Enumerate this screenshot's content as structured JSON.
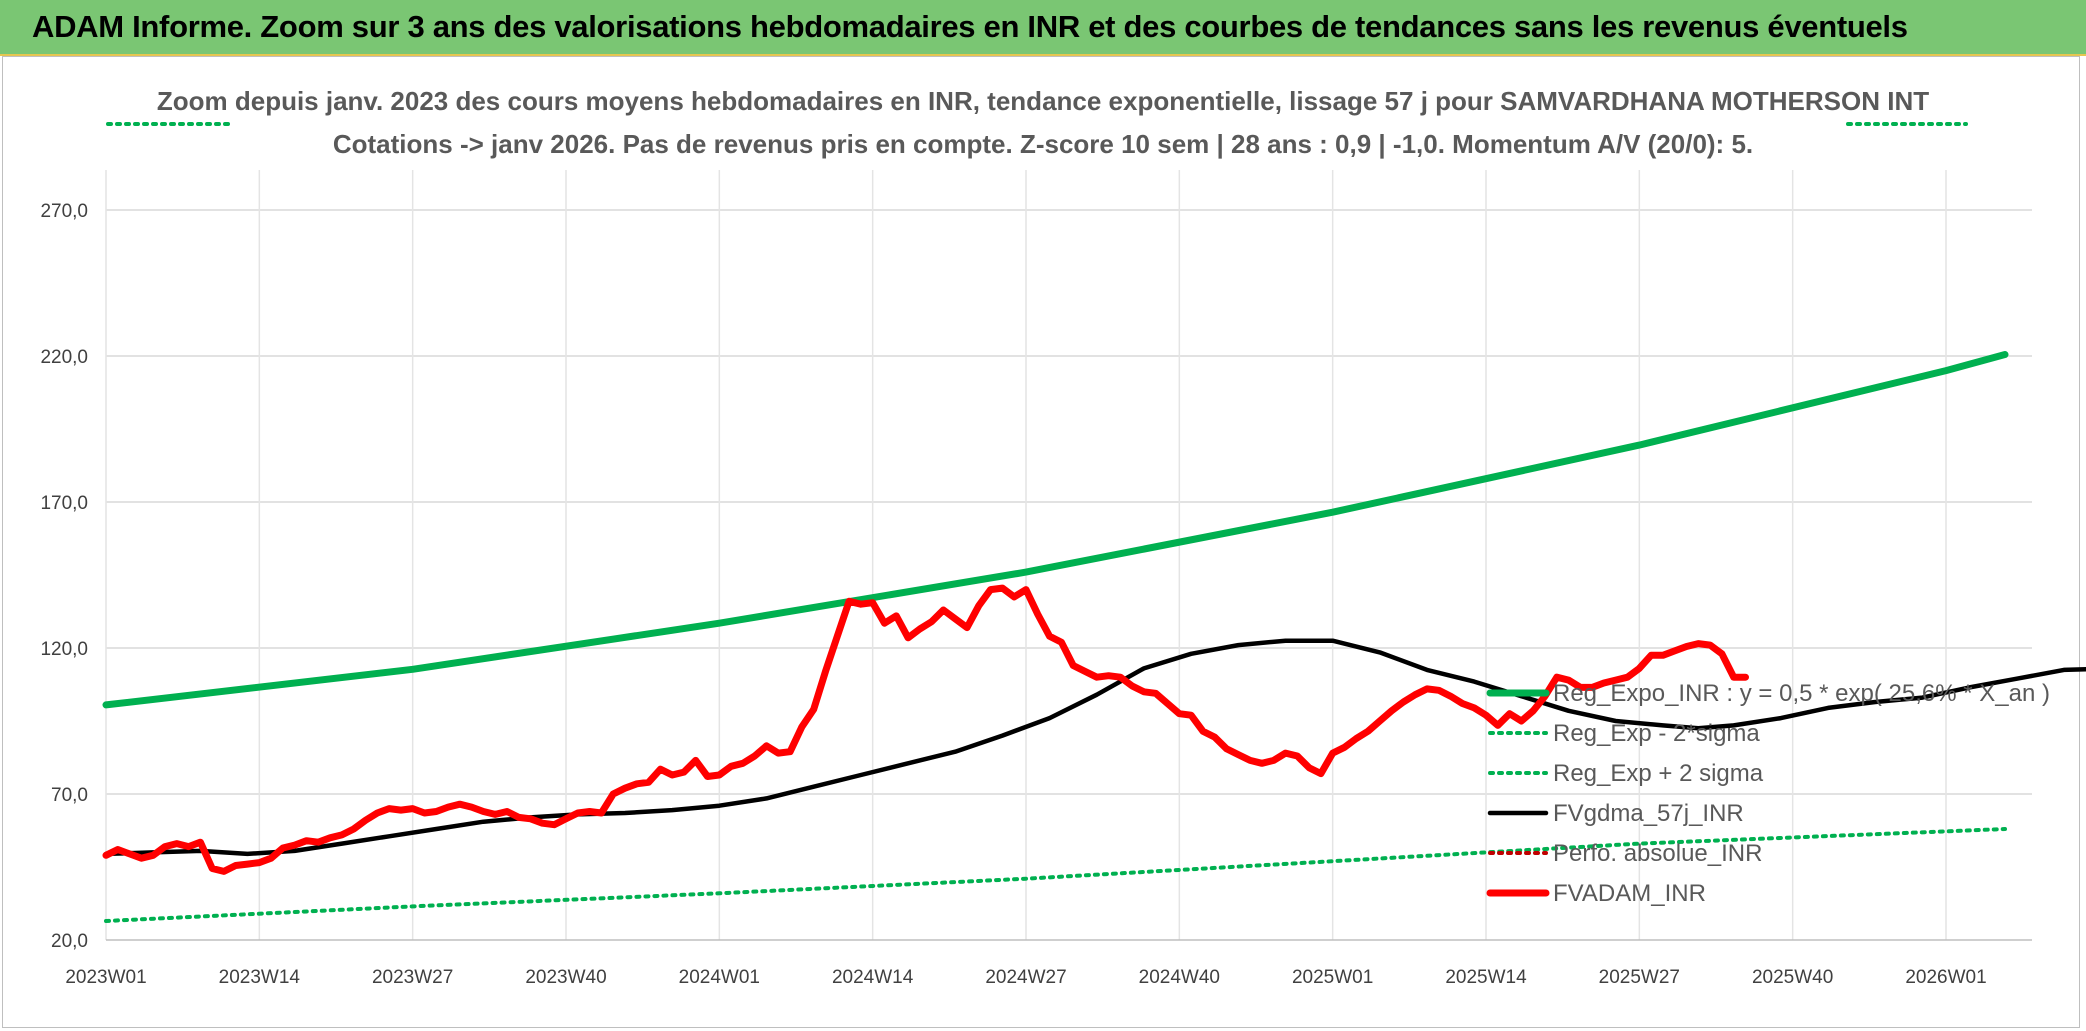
{
  "banner": {
    "title": "ADAM Informe. Zoom sur 3 ans des valorisations hebdomadaires en INR et des courbes de tendances sans les revenus éventuels"
  },
  "colors": {
    "banner_bg": "#7ac673",
    "reg_expo": "#00b050",
    "fvgdma": "#000000",
    "fvadam": "#ff0000",
    "perfo": "#c00000",
    "grid": "#d9d9d9"
  },
  "chart_data": {
    "type": "line",
    "title_line1": "Zoom depuis janv. 2023 des cours moyens hebdomadaires en INR, tendance exponentielle, lissage 57 j pour SAMVARDHANA MOTHERSON INT",
    "title_line2": "Cotations -> janv 2026. Pas de revenus pris en compte. Z-score 10 sem | 28 ans : 0,9 | -1,0. Momentum A/V (20/0): 5.",
    "ylim": [
      20,
      270
    ],
    "yticks": [
      "20,0",
      "70,0",
      "120,0",
      "170,0",
      "220,0",
      "270,0"
    ],
    "xticks": [
      "2023W01",
      "2023W14",
      "2023W27",
      "2023W40",
      "2024W01",
      "2024W14",
      "2024W27",
      "2024W40",
      "2025W01",
      "2025W14",
      "2025W27",
      "2025W40",
      "2026W01"
    ],
    "grid": true,
    "legend_position": "right",
    "series": [
      {
        "name": "Reg_Expo_INR : y = 0,5 * exp( 25,6% *  X_an )",
        "style": "solid-thick",
        "color": "#00b050",
        "points": [
          [
            0,
            100.5
          ],
          [
            26,
            112.7
          ],
          [
            52,
            128.5
          ],
          [
            78,
            146.0
          ],
          [
            104,
            166.5
          ],
          [
            130,
            189.5
          ],
          [
            156,
            215.0
          ],
          [
            161,
            220.5
          ]
        ]
      },
      {
        "name": "Reg_Exp - 2*sigma",
        "style": "dotted",
        "color": "#00b050",
        "points": [
          [
            0,
            26.5
          ],
          [
            26,
            31.5
          ],
          [
            52,
            36.0
          ],
          [
            78,
            41.0
          ],
          [
            104,
            47.0
          ],
          [
            130,
            53.0
          ],
          [
            161,
            58.0
          ]
        ]
      },
      {
        "name": "Reg_Exp + 2 sigma",
        "style": "dotted",
        "color": "#00b050",
        "points": []
      },
      {
        "name": "FVgdma_57j_INR",
        "style": "solid",
        "color": "#000000",
        "points": [
          [
            0,
            49.5
          ],
          [
            4,
            50.0
          ],
          [
            8,
            50.5
          ],
          [
            12,
            49.5
          ],
          [
            16,
            50.5
          ],
          [
            20,
            53.0
          ],
          [
            24,
            55.5
          ],
          [
            28,
            58.0
          ],
          [
            32,
            60.5
          ],
          [
            36,
            62.0
          ],
          [
            40,
            63.0
          ],
          [
            44,
            63.5
          ],
          [
            48,
            64.5
          ],
          [
            52,
            66.0
          ],
          [
            56,
            68.5
          ],
          [
            60,
            72.5
          ],
          [
            64,
            76.5
          ],
          [
            68,
            80.5
          ],
          [
            72,
            84.5
          ],
          [
            76,
            90.0
          ],
          [
            80,
            96.0
          ],
          [
            84,
            104.0
          ],
          [
            88,
            113.0
          ],
          [
            92,
            118.0
          ],
          [
            96,
            121.0
          ],
          [
            100,
            122.5
          ],
          [
            104,
            122.5
          ],
          [
            108,
            118.5
          ],
          [
            112,
            112.5
          ],
          [
            116,
            108.5
          ],
          [
            120,
            103.5
          ],
          [
            124,
            98.5
          ],
          [
            128,
            95.0
          ],
          [
            132,
            93.5
          ],
          [
            135,
            92.5
          ],
          [
            138,
            93.5
          ],
          [
            142,
            96.0
          ],
          [
            146,
            99.5
          ],
          [
            150,
            101.5
          ],
          [
            154,
            103.0
          ],
          [
            158,
            106.5
          ],
          [
            162,
            109.5
          ],
          [
            166,
            112.5
          ],
          [
            170,
            113.0
          ],
          [
            174,
            112.0
          ]
        ]
      },
      {
        "name": "Perfo. absolue_INR",
        "style": "dotted",
        "color": "#c00000",
        "points": []
      },
      {
        "name": "FVADAM_INR",
        "style": "solid-thick",
        "color": "#ff0000",
        "points": [
          [
            0,
            49.0
          ],
          [
            1,
            51.0
          ],
          [
            2,
            49.5
          ],
          [
            3,
            48.0
          ],
          [
            4,
            49.0
          ],
          [
            5,
            52.0
          ],
          [
            6,
            53.0
          ],
          [
            7,
            52.0
          ],
          [
            8,
            53.5
          ],
          [
            9,
            44.5
          ],
          [
            10,
            43.5
          ],
          [
            11,
            45.5
          ],
          [
            12,
            46.0
          ],
          [
            13,
            46.5
          ],
          [
            14,
            48.0
          ],
          [
            15,
            51.5
          ],
          [
            16,
            52.5
          ],
          [
            17,
            54.0
          ],
          [
            18,
            53.5
          ],
          [
            19,
            55.0
          ],
          [
            20,
            56.0
          ],
          [
            21,
            58.0
          ],
          [
            22,
            61.0
          ],
          [
            23,
            63.5
          ],
          [
            24,
            65.0
          ],
          [
            25,
            64.5
          ],
          [
            26,
            65.0
          ],
          [
            27,
            63.5
          ],
          [
            28,
            64.0
          ],
          [
            29,
            65.5
          ],
          [
            30,
            66.5
          ],
          [
            31,
            65.5
          ],
          [
            32,
            64.0
          ],
          [
            33,
            63.0
          ],
          [
            34,
            64.0
          ],
          [
            35,
            62.0
          ],
          [
            36,
            61.5
          ],
          [
            37,
            60.0
          ],
          [
            38,
            59.5
          ],
          [
            39,
            61.5
          ],
          [
            40,
            63.5
          ],
          [
            41,
            64.0
          ],
          [
            42,
            63.5
          ],
          [
            43,
            70.0
          ],
          [
            44,
            72.0
          ],
          [
            45,
            73.5
          ],
          [
            46,
            74.0
          ],
          [
            47,
            78.5
          ],
          [
            48,
            76.5
          ],
          [
            49,
            77.5
          ],
          [
            50,
            81.5
          ],
          [
            51,
            76.0
          ],
          [
            52,
            76.5
          ],
          [
            53,
            79.5
          ],
          [
            54,
            80.5
          ],
          [
            55,
            83.0
          ],
          [
            56,
            86.5
          ],
          [
            57,
            84.0
          ],
          [
            58,
            84.5
          ],
          [
            59,
            93.0
          ],
          [
            60,
            99.0
          ],
          [
            61,
            112.0
          ],
          [
            62,
            124.0
          ],
          [
            63,
            136.0
          ],
          [
            64,
            135.0
          ],
          [
            65,
            135.5
          ],
          [
            66,
            128.5
          ],
          [
            67,
            131.0
          ],
          [
            68,
            123.5
          ],
          [
            69,
            126.5
          ],
          [
            70,
            129.0
          ],
          [
            71,
            133.0
          ],
          [
            72,
            130.0
          ],
          [
            73,
            127.0
          ],
          [
            74,
            134.5
          ],
          [
            75,
            140.0
          ],
          [
            76,
            140.5
          ],
          [
            77,
            137.5
          ],
          [
            78,
            140.0
          ],
          [
            79,
            131.5
          ],
          [
            80,
            124.0
          ],
          [
            81,
            122.0
          ],
          [
            82,
            114.0
          ],
          [
            83,
            112.0
          ],
          [
            84,
            110.0
          ],
          [
            85,
            110.5
          ],
          [
            86,
            110.0
          ],
          [
            87,
            107.0
          ],
          [
            88,
            105.0
          ],
          [
            89,
            104.5
          ],
          [
            90,
            101.0
          ],
          [
            91,
            97.5
          ],
          [
            92,
            97.0
          ],
          [
            93,
            91.5
          ],
          [
            94,
            89.5
          ],
          [
            95,
            85.5
          ],
          [
            96,
            83.5
          ],
          [
            97,
            81.5
          ],
          [
            98,
            80.5
          ],
          [
            99,
            81.5
          ],
          [
            100,
            84.0
          ],
          [
            101,
            83.0
          ],
          [
            102,
            79.0
          ],
          [
            103,
            77.0
          ],
          [
            104,
            84.0
          ],
          [
            105,
            86.0
          ],
          [
            106,
            89.0
          ],
          [
            107,
            91.5
          ],
          [
            108,
            95.0
          ],
          [
            109,
            98.5
          ],
          [
            110,
            101.5
          ],
          [
            111,
            104.0
          ],
          [
            112,
            106.0
          ],
          [
            113,
            105.5
          ],
          [
            114,
            103.5
          ],
          [
            115,
            101.0
          ],
          [
            116,
            99.5
          ],
          [
            117,
            97.0
          ],
          [
            118,
            93.5
          ],
          [
            119,
            97.5
          ],
          [
            120,
            95.0
          ],
          [
            121,
            98.5
          ],
          [
            122,
            103.5
          ],
          [
            123,
            110.0
          ],
          [
            124,
            109.0
          ],
          [
            125,
            106.5
          ],
          [
            126,
            106.5
          ],
          [
            127,
            108.0
          ],
          [
            128,
            109.0
          ],
          [
            129,
            110.0
          ],
          [
            130,
            113.0
          ],
          [
            131,
            117.5
          ],
          [
            132,
            117.5
          ],
          [
            133,
            119.0
          ],
          [
            134,
            120.5
          ],
          [
            135,
            121.5
          ],
          [
            136,
            121.0
          ],
          [
            137,
            118.0
          ],
          [
            138,
            110.0
          ],
          [
            139,
            110.0
          ]
        ]
      }
    ]
  }
}
